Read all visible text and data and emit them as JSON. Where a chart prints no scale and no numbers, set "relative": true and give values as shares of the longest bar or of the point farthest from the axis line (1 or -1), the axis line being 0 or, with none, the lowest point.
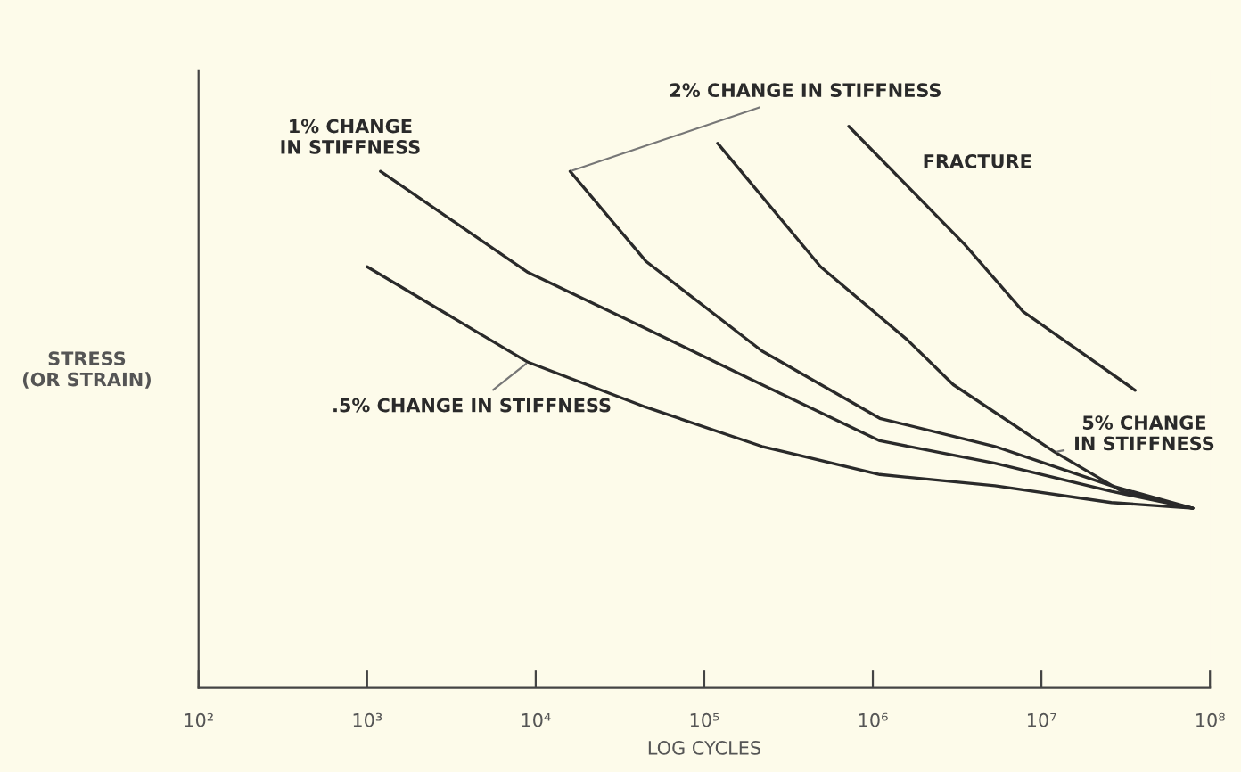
{
  "chart_data": {
    "type": "line",
    "relative": true,
    "log": "x",
    "xlabel": "LOG CYCLES",
    "ylabel": "STRESS\n(OR STRAIN)",
    "xlim": [
      100,
      100000000
    ],
    "xticks": [
      {
        "value": 100,
        "label": "10²"
      },
      {
        "value": 1000,
        "label": "10³"
      },
      {
        "value": 10000,
        "label": "10⁴"
      },
      {
        "value": 100000,
        "label": "10⁵"
      },
      {
        "value": 1000000,
        "label": "10⁶"
      },
      {
        "value": 10000000,
        "label": "10⁷"
      },
      {
        "value": 100000000,
        "label": "10⁸"
      }
    ],
    "tick_labels": "x",
    "grid": false,
    "legend": false,
    "marker": "none",
    "line_style": "solid",
    "series": [
      {
        "name": ".5% CHANGE IN STIFFNESS",
        "color": "#2a2a2a",
        "x": [
          1000,
          9000,
          45000,
          220000,
          1100000,
          5300000,
          26000000,
          79000000
        ],
        "values": [
          0.75,
          0.58,
          0.5,
          0.43,
          0.38,
          0.36,
          0.33,
          0.32
        ]
      },
      {
        "name": "1% CHANGE\nIN STIFFNESS",
        "color": "#2a2a2a",
        "x": [
          1200,
          9000,
          45000,
          220000,
          1100000,
          5300000,
          26000000,
          79000000
        ],
        "values": [
          0.92,
          0.74,
          0.64,
          0.54,
          0.44,
          0.4,
          0.35,
          0.32
        ]
      },
      {
        "name": "2% CHANGE IN STIFFNESS",
        "color": "#2a2a2a",
        "x": [
          16000,
          45000,
          220000,
          1100000,
          5300000,
          26000000,
          79000000
        ],
        "values": [
          0.92,
          0.76,
          0.6,
          0.48,
          0.43,
          0.36,
          0.32
        ]
      },
      {
        "name": "5% CHANGE\nIN STIFFNESS",
        "color": "#2a2a2a",
        "x": [
          120000,
          490000,
          1600000,
          3000000,
          12000000,
          30000000,
          79000000
        ],
        "values": [
          0.97,
          0.75,
          0.62,
          0.54,
          0.42,
          0.35,
          0.32
        ]
      },
      {
        "name": "FRACTURE",
        "color": "#2a2a2a",
        "x": [
          720000,
          3500000,
          7800000,
          36000000
        ],
        "values": [
          1.0,
          0.79,
          0.67,
          0.53
        ]
      }
    ]
  }
}
